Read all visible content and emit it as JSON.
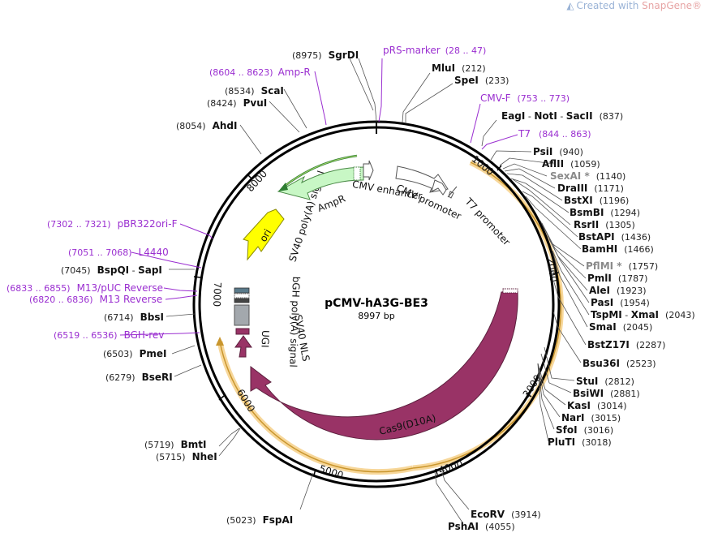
{
  "watermark": {
    "prefix": "Created with ",
    "brand": "SnapGene",
    "reg": "®"
  },
  "plasmid": {
    "name": "pCMV-hA3G-BE3",
    "size_label": "8997 bp"
  },
  "ticks": [
    "1000",
    "2000",
    "3000",
    "4000",
    "5000",
    "6000",
    "7000",
    "8000"
  ],
  "primers": [
    {
      "name": "pRS-marker",
      "range": "(28 .. 47)"
    },
    {
      "name": "CMV-F",
      "range": "(753 .. 773)"
    },
    {
      "name": "T7",
      "range": "(844 .. 863)"
    },
    {
      "name": "Amp-R",
      "range": "(8604 .. 8623)"
    },
    {
      "name": "pBR322ori-F",
      "range": "(7302 .. 7321)"
    },
    {
      "name": "L4440",
      "range": "(7051 .. 7068)"
    },
    {
      "name": "M13/pUC Reverse",
      "range": "(6833 .. 6855)"
    },
    {
      "name": "M13 Reverse",
      "range": "(6820 .. 6836)"
    },
    {
      "name": "BGH-rev",
      "range": "(6519 .. 6536)"
    }
  ],
  "enzymes_right": [
    {
      "name": "MluI",
      "pos": "(212)"
    },
    {
      "name": "SpeI",
      "pos": "(233)"
    },
    {
      "name": "EagI",
      "sep1": " - ",
      "name2": "NotI",
      "sep2": " - ",
      "name3": "SacII",
      "pos": "(837)"
    },
    {
      "name": "PsiI",
      "pos": "(940)"
    },
    {
      "name": "AflII",
      "pos": "(1059)"
    },
    {
      "name": "SexAI *",
      "pos": "(1140)"
    },
    {
      "name": "DraIII",
      "pos": "(1171)"
    },
    {
      "name": "BstXI",
      "pos": "(1196)"
    },
    {
      "name": "BsmBI",
      "pos": "(1294)"
    },
    {
      "name": "RsrII",
      "pos": "(1305)"
    },
    {
      "name": "BstAPI",
      "pos": "(1436)"
    },
    {
      "name": "BamHI",
      "pos": "(1466)"
    },
    {
      "name": "PflMI *",
      "pos": "(1757)"
    },
    {
      "name": "PmlI",
      "pos": "(1787)"
    },
    {
      "name": "AleI",
      "pos": "(1923)"
    },
    {
      "name": "PasI",
      "pos": "(1954)"
    },
    {
      "name": "TspMI",
      "sep1": " - ",
      "name2": "XmaI",
      "pos": "(2043)"
    },
    {
      "name": "SmaI",
      "pos": "(2045)"
    },
    {
      "name": "BstZ17I",
      "pos": "(2287)"
    },
    {
      "name": "Bsu36I",
      "pos": "(2523)"
    },
    {
      "name": "StuI",
      "pos": "(2812)"
    },
    {
      "name": "BsiWI",
      "pos": "(2881)"
    },
    {
      "name": "KasI",
      "pos": "(3014)"
    },
    {
      "name": "NarI",
      "pos": "(3015)"
    },
    {
      "name": "SfoI",
      "pos": "(3016)"
    },
    {
      "name": "PluTI",
      "pos": "(3018)"
    },
    {
      "name": "EcoRV",
      "pos": "(3914)"
    },
    {
      "name": "PshAI",
      "pos": "(4055)"
    }
  ],
  "enzymes_left": [
    {
      "name": "SgrDI",
      "pos": "(8975)"
    },
    {
      "name": "ScaI",
      "pos": "(8534)"
    },
    {
      "name": "PvuI",
      "pos": "(8424)"
    },
    {
      "name": "AhdI",
      "pos": "(8054)"
    },
    {
      "name": "BspQI",
      "sep1": " - ",
      "name2": "SapI",
      "pos": "(7045)"
    },
    {
      "name": "BbsI",
      "pos": "(6714)"
    },
    {
      "name": "PmeI",
      "pos": "(6503)"
    },
    {
      "name": "BseRI",
      "pos": "(6279)"
    },
    {
      "name": "BmtI",
      "pos": "(5719)"
    },
    {
      "name": "NheI",
      "pos": "(5715)"
    },
    {
      "name": "FspAI",
      "pos": "(5023)"
    }
  ],
  "features": {
    "cmv_enhancer": "CMV enhancer",
    "cmv_promoter": "CMV promoter",
    "t7_promoter": "T7 promoter",
    "ampr": "AmpR",
    "ori": "ori",
    "sv40_polya": "SV40 poly(A) signal",
    "bgh_polya": "bGH poly(A) signal",
    "sv40_nls": "SV40 NLS",
    "ugi": "UGI",
    "cas9": "Cas9(D10A)"
  },
  "colors": {
    "ampr": "#c8f7c5",
    "ori": "#ffff00",
    "cas9": "#993366",
    "orf_highlight": "#f5c87a",
    "primer": "#9a2ed0",
    "backbone": "#000000"
  }
}
